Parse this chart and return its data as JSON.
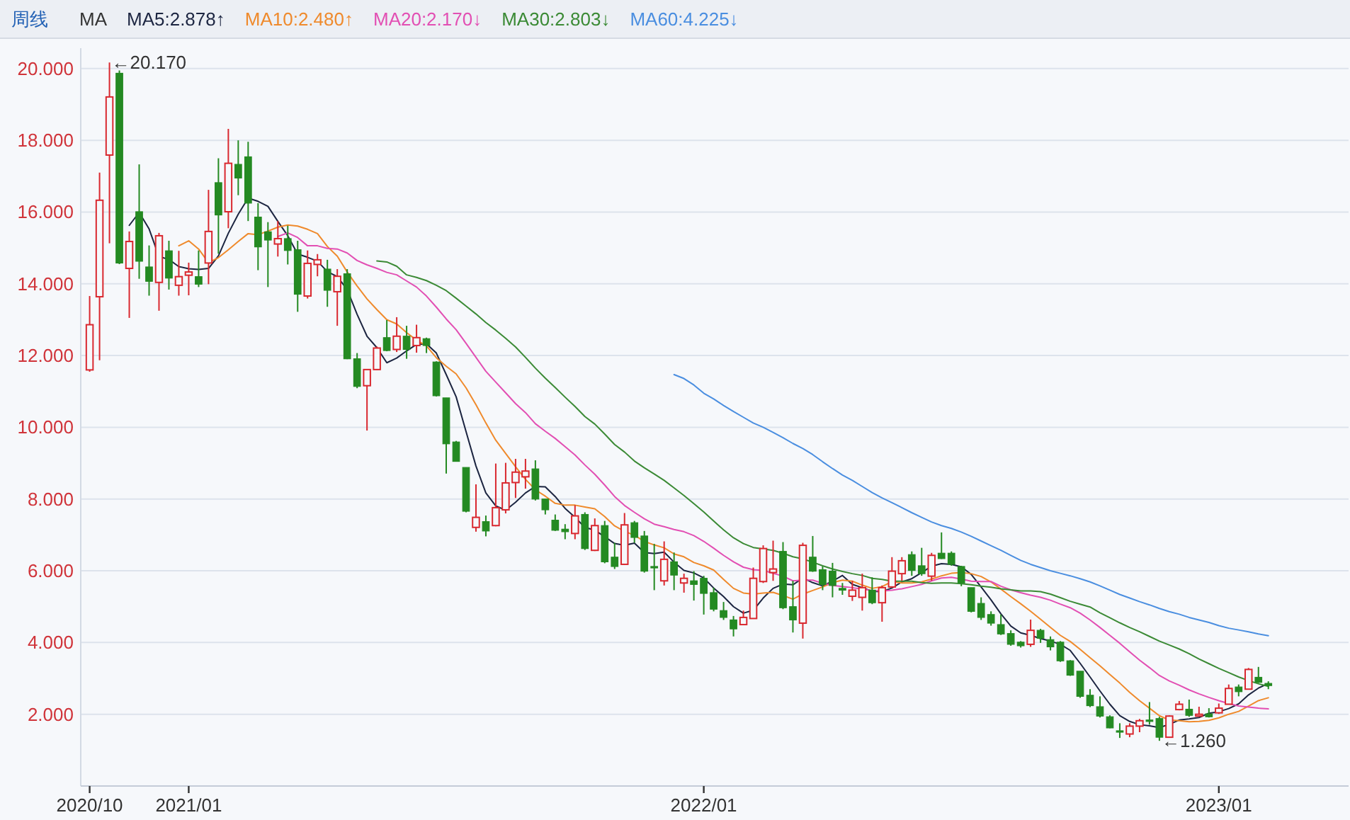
{
  "chart_data": {
    "type": "candlestick",
    "title": "周线",
    "legend_title": "MA",
    "legend": "top",
    "categories": [
      "2020/10",
      null,
      null,
      null,
      null,
      null,
      null,
      null,
      null,
      null,
      "2021/01",
      null,
      null,
      null,
      null,
      null,
      null,
      null,
      null,
      null,
      null,
      null,
      null,
      null,
      null,
      null,
      null,
      null,
      null,
      null,
      null,
      null,
      null,
      null,
      null,
      null,
      null,
      null,
      null,
      null,
      null,
      null,
      null,
      null,
      null,
      null,
      null,
      null,
      null,
      null,
      null,
      null,
      null,
      null,
      null,
      null,
      null,
      null,
      null,
      null,
      null,
      null,
      "2022/01",
      null,
      null,
      null,
      null,
      null,
      null,
      null,
      null,
      null,
      null,
      null,
      null,
      null,
      null,
      null,
      null,
      null,
      null,
      null,
      null,
      null,
      null,
      null,
      null,
      null,
      null,
      null,
      null,
      null,
      null,
      null,
      null,
      null,
      null,
      null,
      null,
      null,
      null,
      null,
      null,
      null,
      null,
      null,
      null,
      null,
      null,
      null,
      null,
      null,
      null,
      null,
      "2023/01",
      null,
      null,
      null,
      null,
      null
    ],
    "ohlc": [
      [
        11.6,
        13.66,
        11.55,
        12.86
      ],
      [
        13.64,
        17.1,
        11.87,
        16.33
      ],
      [
        17.59,
        20.17,
        15.13,
        19.21
      ],
      [
        19.87,
        19.95,
        14.55,
        14.58
      ],
      [
        14.43,
        15.46,
        13.05,
        15.18
      ],
      [
        16.01,
        17.33,
        14.14,
        14.63
      ],
      [
        14.47,
        15.07,
        13.67,
        14.07
      ],
      [
        14.04,
        15.42,
        13.25,
        15.34
      ],
      [
        14.92,
        15.2,
        13.84,
        14.16
      ],
      [
        13.96,
        14.92,
        13.67,
        14.2
      ],
      [
        14.24,
        14.59,
        13.68,
        14.33
      ],
      [
        14.2,
        14.93,
        13.91,
        13.99
      ],
      [
        14.58,
        16.62,
        13.99,
        15.46
      ],
      [
        16.82,
        17.5,
        14.84,
        15.92
      ],
      [
        16.01,
        18.32,
        15.55,
        17.36
      ],
      [
        17.33,
        18.0,
        16.47,
        16.95
      ],
      [
        17.54,
        17.96,
        15.75,
        16.25
      ],
      [
        15.86,
        16.25,
        14.38,
        15.03
      ],
      [
        15.45,
        15.72,
        13.91,
        15.22
      ],
      [
        15.11,
        15.75,
        14.76,
        15.26
      ],
      [
        15.26,
        15.62,
        14.54,
        14.93
      ],
      [
        14.95,
        15.2,
        13.22,
        13.71
      ],
      [
        13.66,
        14.93,
        13.59,
        14.57
      ],
      [
        14.54,
        14.83,
        14.21,
        14.67
      ],
      [
        14.41,
        14.67,
        13.36,
        13.82
      ],
      [
        13.78,
        14.41,
        12.83,
        14.21
      ],
      [
        14.28,
        14.41,
        11.9,
        11.91
      ],
      [
        11.91,
        12.07,
        11.09,
        11.14
      ],
      [
        11.16,
        11.62,
        9.91,
        11.61
      ],
      [
        11.61,
        12.25,
        11.6,
        12.21
      ],
      [
        12.5,
        12.99,
        12.12,
        12.14
      ],
      [
        12.17,
        13.07,
        12.1,
        12.54
      ],
      [
        12.54,
        12.83,
        11.91,
        12.17
      ],
      [
        12.28,
        12.86,
        12.08,
        12.5
      ],
      [
        12.47,
        12.5,
        12.07,
        12.28
      ],
      [
        11.82,
        11.84,
        10.86,
        10.88
      ],
      [
        10.82,
        10.82,
        8.71,
        9.54
      ],
      [
        9.59,
        9.62,
        9.05,
        9.05
      ],
      [
        8.88,
        8.88,
        7.63,
        7.66
      ],
      [
        7.21,
        8.41,
        7.09,
        7.49
      ],
      [
        7.37,
        7.54,
        6.96,
        7.11
      ],
      [
        7.26,
        8.99,
        7.24,
        7.76
      ],
      [
        7.7,
        9.01,
        7.6,
        8.45
      ],
      [
        8.46,
        9.12,
        8.03,
        8.75
      ],
      [
        8.62,
        9.12,
        8.29,
        8.78
      ],
      [
        8.84,
        9.08,
        7.96,
        8.0
      ],
      [
        8.0,
        8.0,
        7.57,
        7.7
      ],
      [
        7.41,
        7.57,
        7.11,
        7.13
      ],
      [
        7.16,
        7.3,
        6.88,
        7.09
      ],
      [
        7.04,
        7.83,
        6.88,
        7.53
      ],
      [
        7.57,
        7.63,
        6.58,
        6.62
      ],
      [
        6.57,
        7.46,
        6.55,
        7.26
      ],
      [
        7.26,
        7.39,
        6.21,
        6.25
      ],
      [
        6.38,
        6.78,
        6.05,
        6.12
      ],
      [
        6.18,
        7.61,
        6.17,
        7.28
      ],
      [
        7.34,
        7.39,
        6.78,
        6.93
      ],
      [
        6.97,
        7.11,
        5.95,
        5.99
      ],
      [
        6.12,
        6.75,
        5.46,
        6.08
      ],
      [
        5.72,
        6.82,
        5.59,
        6.32
      ],
      [
        6.25,
        6.51,
        5.46,
        5.88
      ],
      [
        5.66,
        5.92,
        5.39,
        5.79
      ],
      [
        5.72,
        5.99,
        5.17,
        5.62
      ],
      [
        5.79,
        5.86,
        4.78,
        5.37
      ],
      [
        5.39,
        5.53,
        4.87,
        4.93
      ],
      [
        4.89,
        5.13,
        4.63,
        4.7
      ],
      [
        4.63,
        4.74,
        4.17,
        4.38
      ],
      [
        4.5,
        4.89,
        4.49,
        4.7
      ],
      [
        4.67,
        6.09,
        4.66,
        5.79
      ],
      [
        5.7,
        6.71,
        5.66,
        6.62
      ],
      [
        5.95,
        6.84,
        5.72,
        6.05
      ],
      [
        6.54,
        6.8,
        4.93,
        4.97
      ],
      [
        5.0,
        5.72,
        4.28,
        4.63
      ],
      [
        4.54,
        6.78,
        4.11,
        6.71
      ],
      [
        6.38,
        6.97,
        5.97,
        5.99
      ],
      [
        6.03,
        6.12,
        5.46,
        5.62
      ],
      [
        5.99,
        6.22,
        5.26,
        5.59
      ],
      [
        5.51,
        5.66,
        5.33,
        5.46
      ],
      [
        5.29,
        5.72,
        5.16,
        5.46
      ],
      [
        5.26,
        5.92,
        4.89,
        5.53
      ],
      [
        5.46,
        5.82,
        5.07,
        5.11
      ],
      [
        5.11,
        5.59,
        4.58,
        5.53
      ],
      [
        5.55,
        6.38,
        5.53,
        5.99
      ],
      [
        5.92,
        6.38,
        5.72,
        6.28
      ],
      [
        6.45,
        6.54,
        5.86,
        6.01
      ],
      [
        6.14,
        6.64,
        5.86,
        5.92
      ],
      [
        5.85,
        6.5,
        5.72,
        6.43
      ],
      [
        6.49,
        7.07,
        6.33,
        6.34
      ],
      [
        6.49,
        6.54,
        6.14,
        6.18
      ],
      [
        6.12,
        6.14,
        5.57,
        5.66
      ],
      [
        5.53,
        5.53,
        4.84,
        4.87
      ],
      [
        5.09,
        5.26,
        4.63,
        4.7
      ],
      [
        4.78,
        4.87,
        4.47,
        4.54
      ],
      [
        4.5,
        4.78,
        4.21,
        4.24
      ],
      [
        4.25,
        4.34,
        3.91,
        3.95
      ],
      [
        4.01,
        4.04,
        3.86,
        3.91
      ],
      [
        3.95,
        4.64,
        3.88,
        4.34
      ],
      [
        4.34,
        4.38,
        3.99,
        4.12
      ],
      [
        4.08,
        4.17,
        3.78,
        3.88
      ],
      [
        4.01,
        4.04,
        3.46,
        3.49
      ],
      [
        3.49,
        3.51,
        3.07,
        3.09
      ],
      [
        3.2,
        3.2,
        2.46,
        2.5
      ],
      [
        2.53,
        2.7,
        2.2,
        2.24
      ],
      [
        2.21,
        2.5,
        1.91,
        1.95
      ],
      [
        1.93,
        1.97,
        1.61,
        1.62
      ],
      [
        1.54,
        1.75,
        1.34,
        1.51
      ],
      [
        1.45,
        1.75,
        1.36,
        1.67
      ],
      [
        1.67,
        1.87,
        1.5,
        1.82
      ],
      [
        1.84,
        2.34,
        1.71,
        1.8
      ],
      [
        1.88,
        1.93,
        1.26,
        1.36
      ],
      [
        1.36,
        1.97,
        1.35,
        1.95
      ],
      [
        2.13,
        2.37,
        2.11,
        2.28
      ],
      [
        2.14,
        2.41,
        1.93,
        1.97
      ],
      [
        1.95,
        2.21,
        1.93,
        2.0
      ],
      [
        2.01,
        2.17,
        1.91,
        1.93
      ],
      [
        2.04,
        2.3,
        2.01,
        2.17
      ],
      [
        2.28,
        2.83,
        2.28,
        2.72
      ],
      [
        2.76,
        2.83,
        2.5,
        2.63
      ],
      [
        2.7,
        3.29,
        2.69,
        3.25
      ],
      [
        3.03,
        3.32,
        2.87,
        2.89
      ],
      [
        2.86,
        2.92,
        2.7,
        2.8
      ]
    ],
    "colors": [
      "#d9282f",
      "#d9282f",
      "#d9282f",
      "#248a22",
      "#d9282f",
      "#248a22",
      "#248a22",
      "#d9282f",
      "#248a22",
      "#d9282f",
      "#d9282f",
      "#248a22",
      "#d9282f",
      "#248a22",
      "#d9282f",
      "#248a22",
      "#248a22",
      "#248a22",
      "#248a22",
      "#d9282f",
      "#248a22",
      "#248a22",
      "#d9282f",
      "#d9282f",
      "#248a22",
      "#d9282f",
      "#248a22",
      "#248a22",
      "#d9282f",
      "#d9282f",
      "#248a22",
      "#d9282f",
      "#248a22",
      "#d9282f",
      "#248a22",
      "#248a22",
      "#248a22",
      "#248a22",
      "#248a22",
      "#d9282f",
      "#248a22",
      "#d9282f",
      "#d9282f",
      "#d9282f",
      "#d9282f",
      "#248a22",
      "#248a22",
      "#248a22",
      "#248a22",
      "#d9282f",
      "#248a22",
      "#d9282f",
      "#248a22",
      "#248a22",
      "#d9282f",
      "#248a22",
      "#248a22",
      "#248a22",
      "#d9282f",
      "#248a22",
      "#d9282f",
      "#248a22",
      "#248a22",
      "#248a22",
      "#248a22",
      "#248a22",
      "#d9282f",
      "#d9282f",
      "#d9282f",
      "#d9282f",
      "#248a22",
      "#248a22",
      "#d9282f",
      "#248a22",
      "#248a22",
      "#248a22",
      "#248a22",
      "#d9282f",
      "#d9282f",
      "#248a22",
      "#d9282f",
      "#d9282f",
      "#d9282f",
      "#248a22",
      "#248a22",
      "#d9282f",
      "#248a22",
      "#248a22",
      "#248a22",
      "#248a22",
      "#248a22",
      "#248a22",
      "#248a22",
      "#248a22",
      "#248a22",
      "#d9282f",
      "#248a22",
      "#248a22",
      "#248a22",
      "#248a22",
      "#248a22",
      "#248a22",
      "#248a22",
      "#248a22",
      "#248a22",
      "#d9282f",
      "#d9282f",
      "#248a22",
      "#248a22",
      "#d9282f",
      "#d9282f",
      "#248a22",
      "#d9282f",
      "#248a22",
      "#d9282f",
      "#d9282f",
      "#248a22",
      "#d9282f",
      "#248a22",
      "#248a22"
    ],
    "series": [
      {
        "name": "MA5:2.878↑",
        "type": "line",
        "color": "#1c2541",
        "values": [
          null,
          null,
          null,
          null,
          15.63,
          15.99,
          15.53,
          14.76,
          14.68,
          14.48,
          14.42,
          14.4,
          14.43,
          14.78,
          15.41,
          15.94,
          16.39,
          16.3,
          16.16,
          15.74,
          15.34,
          14.83,
          14.74,
          14.63,
          14.34,
          14.2,
          13.84,
          13.15,
          12.54,
          12.22,
          11.8,
          11.93,
          12.13,
          12.31,
          12.33,
          12.07,
          11.47,
          10.85,
          9.88,
          8.92,
          8.17,
          7.81,
          7.69,
          7.91,
          8.17,
          8.35,
          8.34,
          8.07,
          7.74,
          7.49,
          7.21,
          7.13,
          6.95,
          6.76,
          6.71,
          6.77,
          6.51,
          6.48,
          6.52,
          6.24,
          6.01,
          5.94,
          5.8,
          5.52,
          5.28,
          5.0,
          4.82,
          4.9,
          5.24,
          5.51,
          5.63,
          5.61,
          5.8,
          5.67,
          5.58,
          5.71,
          5.87,
          5.62,
          5.53,
          5.43,
          5.42,
          5.52,
          5.69,
          5.78,
          5.95,
          6.13,
          6.2,
          6.18,
          6.11,
          5.9,
          5.55,
          5.19,
          4.8,
          4.46,
          4.27,
          4.2,
          4.11,
          4.04,
          3.95,
          3.78,
          3.42,
          3.04,
          2.65,
          2.28,
          1.96,
          1.8,
          1.71,
          1.68,
          1.63,
          1.72,
          1.84,
          1.87,
          1.91,
          2.03,
          2.07,
          2.16,
          2.29,
          2.54,
          2.73,
          2.86
        ]
      },
      {
        "name": "MA10:2.480↑",
        "type": "line",
        "color": "#ef8a2c",
        "values": [
          null,
          null,
          null,
          null,
          null,
          null,
          null,
          null,
          null,
          15.06,
          15.2,
          14.97,
          14.59,
          14.73,
          14.95,
          15.18,
          15.4,
          15.37,
          15.47,
          15.58,
          15.64,
          15.61,
          15.52,
          15.4,
          15.04,
          14.77,
          14.33,
          13.94,
          13.58,
          13.28,
          13.0,
          12.88,
          12.64,
          12.43,
          12.27,
          11.94,
          11.7,
          11.49,
          11.1,
          10.63,
          10.12,
          9.64,
          9.27,
          8.9,
          8.55,
          8.26,
          8.08,
          7.88,
          7.83,
          7.83,
          7.78,
          7.73,
          7.51,
          7.25,
          7.1,
          6.99,
          6.82,
          6.72,
          6.64,
          6.47,
          6.39,
          6.23,
          6.14,
          6.02,
          5.76,
          5.51,
          5.38,
          5.35,
          5.38,
          5.4,
          5.31,
          5.21,
          5.35,
          5.45,
          5.55,
          5.67,
          5.74,
          5.71,
          5.6,
          5.51,
          5.56,
          5.7,
          5.66,
          5.66,
          5.69,
          5.77,
          5.86,
          5.93,
          5.95,
          5.92,
          5.84,
          5.69,
          5.49,
          5.28,
          5.08,
          4.87,
          4.65,
          4.42,
          4.2,
          4.03,
          3.81,
          3.58,
          3.35,
          3.11,
          2.87,
          2.61,
          2.38,
          2.17,
          1.96,
          1.84,
          1.82,
          1.79,
          1.8,
          1.83,
          1.9,
          2.0,
          2.08,
          2.23,
          2.38,
          2.46
        ]
      },
      {
        "name": "MA20:2.170↓",
        "type": "line",
        "color": "#e24fb3",
        "values": [
          null,
          null,
          null,
          null,
          null,
          null,
          null,
          null,
          null,
          null,
          null,
          null,
          null,
          null,
          null,
          null,
          null,
          null,
          null,
          15.32,
          15.42,
          15.29,
          15.06,
          15.06,
          14.99,
          14.97,
          14.86,
          14.65,
          14.53,
          14.43,
          14.32,
          14.25,
          14.08,
          13.91,
          13.66,
          13.35,
          13.02,
          12.72,
          12.34,
          11.95,
          11.56,
          11.26,
          10.96,
          10.66,
          10.41,
          10.1,
          9.89,
          9.69,
          9.46,
          9.23,
          8.95,
          8.69,
          8.39,
          8.07,
          7.82,
          7.63,
          7.45,
          7.3,
          7.23,
          7.15,
          7.09,
          6.98,
          6.82,
          6.63,
          6.43,
          6.25,
          6.1,
          6.03,
          6.01,
          5.93,
          5.85,
          5.72,
          5.74,
          5.74,
          5.65,
          5.59,
          5.56,
          5.53,
          5.49,
          5.45,
          5.44,
          5.46,
          5.5,
          5.56,
          5.62,
          5.72,
          5.8,
          5.82,
          5.77,
          5.71,
          5.7,
          5.7,
          5.57,
          5.47,
          5.39,
          5.32,
          5.26,
          5.18,
          5.07,
          4.97,
          4.82,
          4.63,
          4.42,
          4.2,
          3.98,
          3.74,
          3.51,
          3.3,
          3.08,
          2.93,
          2.81,
          2.68,
          2.57,
          2.47,
          2.38,
          2.3,
          2.23,
          2.2,
          2.17,
          2.15
        ]
      },
      {
        "name": "MA30:2.803↓",
        "type": "line",
        "color": "#3b8a35",
        "values": [
          null,
          null,
          null,
          null,
          null,
          null,
          null,
          null,
          null,
          null,
          null,
          null,
          null,
          null,
          null,
          null,
          null,
          null,
          null,
          null,
          null,
          null,
          null,
          null,
          null,
          null,
          null,
          null,
          null,
          14.64,
          14.61,
          14.49,
          14.25,
          14.18,
          14.09,
          13.96,
          13.81,
          13.6,
          13.38,
          13.16,
          12.92,
          12.71,
          12.48,
          12.24,
          11.95,
          11.65,
          11.37,
          11.11,
          10.84,
          10.58,
          10.3,
          10.09,
          9.81,
          9.52,
          9.31,
          9.06,
          8.87,
          8.7,
          8.52,
          8.31,
          8.1,
          7.87,
          7.64,
          7.39,
          7.14,
          6.92,
          6.76,
          6.65,
          6.61,
          6.57,
          6.49,
          6.39,
          6.33,
          6.24,
          6.14,
          6.05,
          5.98,
          5.92,
          5.87,
          5.79,
          5.76,
          5.71,
          5.71,
          5.71,
          5.67,
          5.65,
          5.66,
          5.66,
          5.64,
          5.61,
          5.57,
          5.54,
          5.5,
          5.47,
          5.44,
          5.44,
          5.42,
          5.35,
          5.25,
          5.15,
          5.07,
          4.99,
          4.83,
          4.69,
          4.55,
          4.42,
          4.3,
          4.17,
          4.04,
          3.93,
          3.82,
          3.69,
          3.54,
          3.41,
          3.28,
          3.16,
          3.04,
          2.94,
          2.85,
          2.78
        ]
      },
      {
        "name": "MA60:4.225↓",
        "type": "line",
        "color": "#4a8ee0",
        "values": [
          null,
          null,
          null,
          null,
          null,
          null,
          null,
          null,
          null,
          null,
          null,
          null,
          null,
          null,
          null,
          null,
          null,
          null,
          null,
          null,
          null,
          null,
          null,
          null,
          null,
          null,
          null,
          null,
          null,
          null,
          null,
          null,
          null,
          null,
          null,
          null,
          null,
          null,
          null,
          null,
          null,
          null,
          null,
          null,
          null,
          null,
          null,
          null,
          null,
          null,
          null,
          null,
          null,
          null,
          null,
          null,
          null,
          null,
          null,
          11.47,
          11.36,
          11.18,
          10.95,
          10.79,
          10.61,
          10.44,
          10.28,
          10.12,
          10.0,
          9.86,
          9.71,
          9.55,
          9.41,
          9.24,
          9.04,
          8.85,
          8.67,
          8.52,
          8.35,
          8.18,
          8.03,
          7.9,
          7.76,
          7.62,
          7.49,
          7.36,
          7.26,
          7.18,
          7.08,
          6.96,
          6.83,
          6.7,
          6.57,
          6.43,
          6.29,
          6.18,
          6.09,
          6.0,
          5.93,
          5.86,
          5.78,
          5.69,
          5.58,
          5.46,
          5.34,
          5.24,
          5.14,
          5.05,
          4.95,
          4.86,
          4.79,
          4.7,
          4.63,
          4.56,
          4.47,
          4.4,
          4.35,
          4.3,
          4.24,
          4.19
        ]
      }
    ],
    "ylim": [
      0,
      20.57
    ],
    "yticks": [
      {
        "value": 2,
        "label": "2.000"
      },
      {
        "value": 4,
        "label": "4.000"
      },
      {
        "value": 6,
        "label": "6.000"
      },
      {
        "value": 8,
        "label": "8.000"
      },
      {
        "value": 10,
        "label": "10.000"
      },
      {
        "value": 12,
        "label": "12.000"
      },
      {
        "value": 14,
        "label": "14.000"
      },
      {
        "value": 16,
        "label": "16.000"
      },
      {
        "value": 18,
        "label": "18.000"
      },
      {
        "value": 20,
        "label": "20.000"
      }
    ],
    "grid": "y",
    "annotations": [
      "←20.170",
      "←1.260"
    ]
  }
}
